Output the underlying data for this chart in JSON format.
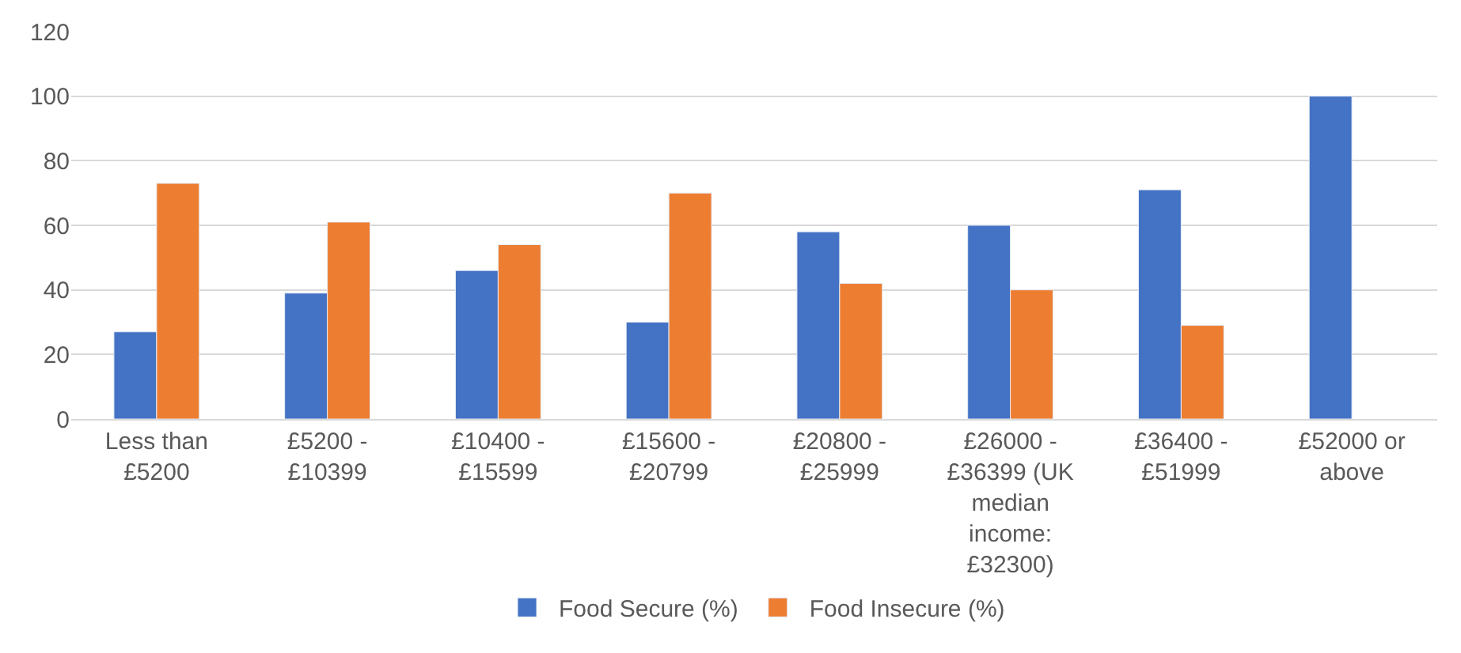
{
  "chart_data": {
    "type": "bar",
    "categories": [
      "Less than £5200",
      "£5200 - £10399",
      "£10400 - £15599",
      "£15600 - £20799",
      "£20800 - £25999",
      "£26000 - £36399 (UK median income: £32300)",
      "£36400 - £51999",
      "£52000 or above"
    ],
    "series": [
      {
        "name": "Food Secure (%)",
        "color": "#4472c4",
        "values": [
          27,
          39,
          46,
          30,
          58,
          60,
          71,
          100
        ]
      },
      {
        "name": "Food Insecure (%)",
        "color": "#ed7d31",
        "values": [
          73,
          61,
          54,
          70,
          42,
          40,
          29,
          null
        ]
      }
    ],
    "ylim": [
      0,
      120
    ],
    "yticks": [
      0,
      20,
      40,
      60,
      80,
      100,
      120
    ],
    "grid": "y",
    "legend": "bottom"
  }
}
